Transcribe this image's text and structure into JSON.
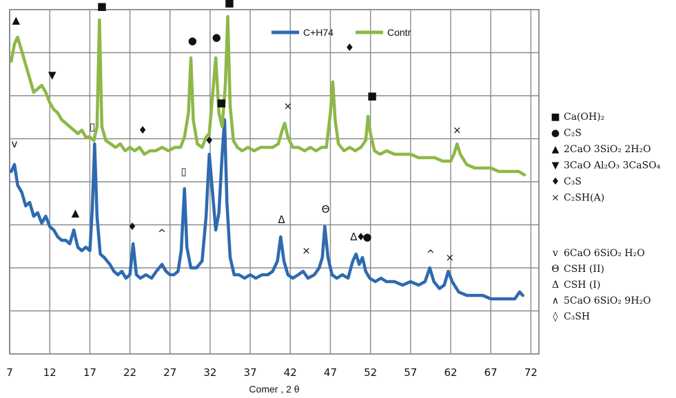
{
  "chart_data": {
    "type": "line",
    "title": "",
    "xlabel": "Сomer , 2 θ",
    "ylabel": "",
    "xlim": [
      7,
      73
    ],
    "x_ticks": [
      7,
      12,
      17,
      22,
      27,
      32,
      37,
      42,
      47,
      52,
      57,
      62,
      67,
      72
    ],
    "grid": true,
    "legend_position": "top-center",
    "series": [
      {
        "name": "C+H74",
        "color": "#2e6ab0",
        "points": [
          [
            7.2,
            0.53
          ],
          [
            7.6,
            0.55
          ],
          [
            8.0,
            0.49
          ],
          [
            8.5,
            0.47
          ],
          [
            9.0,
            0.43
          ],
          [
            9.5,
            0.44
          ],
          [
            10.0,
            0.4
          ],
          [
            10.5,
            0.41
          ],
          [
            11.0,
            0.38
          ],
          [
            11.5,
            0.4
          ],
          [
            12.0,
            0.37
          ],
          [
            12.5,
            0.36
          ],
          [
            13.0,
            0.34
          ],
          [
            13.5,
            0.33
          ],
          [
            14.0,
            0.33
          ],
          [
            14.5,
            0.32
          ],
          [
            15.0,
            0.36
          ],
          [
            15.5,
            0.31
          ],
          [
            16.0,
            0.3
          ],
          [
            16.5,
            0.31
          ],
          [
            17.0,
            0.3
          ],
          [
            17.3,
            0.42
          ],
          [
            17.6,
            0.61
          ],
          [
            17.9,
            0.4
          ],
          [
            18.3,
            0.29
          ],
          [
            18.8,
            0.28
          ],
          [
            19.5,
            0.26
          ],
          [
            20.0,
            0.24
          ],
          [
            20.5,
            0.23
          ],
          [
            21.0,
            0.24
          ],
          [
            21.5,
            0.22
          ],
          [
            22.0,
            0.23
          ],
          [
            22.4,
            0.32
          ],
          [
            22.8,
            0.23
          ],
          [
            23.3,
            0.22
          ],
          [
            24.0,
            0.23
          ],
          [
            24.7,
            0.22
          ],
          [
            25.3,
            0.24
          ],
          [
            26.0,
            0.26
          ],
          [
            26.5,
            0.24
          ],
          [
            27.0,
            0.23
          ],
          [
            27.5,
            0.23
          ],
          [
            28.0,
            0.24
          ],
          [
            28.4,
            0.3
          ],
          [
            28.8,
            0.48
          ],
          [
            29.1,
            0.31
          ],
          [
            29.6,
            0.25
          ],
          [
            30.3,
            0.25
          ],
          [
            31.0,
            0.27
          ],
          [
            31.5,
            0.4
          ],
          [
            31.9,
            0.58
          ],
          [
            32.3,
            0.47
          ],
          [
            32.7,
            0.36
          ],
          [
            33.1,
            0.41
          ],
          [
            33.5,
            0.58
          ],
          [
            33.8,
            0.68
          ],
          [
            34.1,
            0.44
          ],
          [
            34.5,
            0.28
          ],
          [
            35.0,
            0.23
          ],
          [
            35.6,
            0.23
          ],
          [
            36.3,
            0.22
          ],
          [
            37.0,
            0.23
          ],
          [
            37.7,
            0.22
          ],
          [
            38.5,
            0.23
          ],
          [
            39.2,
            0.23
          ],
          [
            39.8,
            0.24
          ],
          [
            40.4,
            0.27
          ],
          [
            40.8,
            0.34
          ],
          [
            41.2,
            0.27
          ],
          [
            41.7,
            0.23
          ],
          [
            42.3,
            0.22
          ],
          [
            43.0,
            0.23
          ],
          [
            43.6,
            0.24
          ],
          [
            44.2,
            0.22
          ],
          [
            45.0,
            0.23
          ],
          [
            45.6,
            0.25
          ],
          [
            46.0,
            0.28
          ],
          [
            46.3,
            0.37
          ],
          [
            46.7,
            0.28
          ],
          [
            47.2,
            0.23
          ],
          [
            47.8,
            0.22
          ],
          [
            48.5,
            0.23
          ],
          [
            49.2,
            0.22
          ],
          [
            49.8,
            0.27
          ],
          [
            50.2,
            0.29
          ],
          [
            50.6,
            0.26
          ],
          [
            51.0,
            0.28
          ],
          [
            51.4,
            0.24
          ],
          [
            51.9,
            0.22
          ],
          [
            52.6,
            0.21
          ],
          [
            53.3,
            0.22
          ],
          [
            54.0,
            0.21
          ],
          [
            55.0,
            0.21
          ],
          [
            56.0,
            0.2
          ],
          [
            57.0,
            0.21
          ],
          [
            58.0,
            0.2
          ],
          [
            58.8,
            0.21
          ],
          [
            59.4,
            0.25
          ],
          [
            59.9,
            0.21
          ],
          [
            60.6,
            0.19
          ],
          [
            61.2,
            0.2
          ],
          [
            61.7,
            0.24
          ],
          [
            62.2,
            0.21
          ],
          [
            63.0,
            0.18
          ],
          [
            64.0,
            0.17
          ],
          [
            65.0,
            0.17
          ],
          [
            66.0,
            0.17
          ],
          [
            67.0,
            0.16
          ],
          [
            68.0,
            0.16
          ],
          [
            69.0,
            0.16
          ],
          [
            70.0,
            0.16
          ],
          [
            70.6,
            0.18
          ],
          [
            71.0,
            0.17
          ]
        ]
      },
      {
        "name": "Contr",
        "color": "#8db848",
        "points": [
          [
            7.2,
            0.85
          ],
          [
            7.6,
            0.9
          ],
          [
            8.0,
            0.92
          ],
          [
            8.5,
            0.88
          ],
          [
            9.0,
            0.84
          ],
          [
            9.5,
            0.8
          ],
          [
            10.0,
            0.76
          ],
          [
            10.5,
            0.77
          ],
          [
            11.0,
            0.78
          ],
          [
            11.5,
            0.76
          ],
          [
            12.0,
            0.73
          ],
          [
            12.5,
            0.71
          ],
          [
            13.0,
            0.7
          ],
          [
            13.5,
            0.68
          ],
          [
            14.0,
            0.67
          ],
          [
            14.5,
            0.66
          ],
          [
            15.0,
            0.65
          ],
          [
            15.5,
            0.64
          ],
          [
            16.0,
            0.65
          ],
          [
            16.5,
            0.63
          ],
          [
            17.0,
            0.63
          ],
          [
            17.5,
            0.62
          ],
          [
            17.9,
            0.66
          ],
          [
            18.2,
            0.97
          ],
          [
            18.5,
            0.66
          ],
          [
            19.0,
            0.62
          ],
          [
            19.6,
            0.61
          ],
          [
            20.2,
            0.6
          ],
          [
            20.8,
            0.61
          ],
          [
            21.4,
            0.59
          ],
          [
            22.0,
            0.6
          ],
          [
            22.6,
            0.59
          ],
          [
            23.2,
            0.6
          ],
          [
            23.8,
            0.58
          ],
          [
            24.5,
            0.59
          ],
          [
            25.2,
            0.59
          ],
          [
            26.0,
            0.6
          ],
          [
            26.8,
            0.59
          ],
          [
            27.6,
            0.6
          ],
          [
            28.3,
            0.6
          ],
          [
            28.8,
            0.63
          ],
          [
            29.3,
            0.7
          ],
          [
            29.6,
            0.86
          ],
          [
            29.9,
            0.68
          ],
          [
            30.4,
            0.61
          ],
          [
            31.0,
            0.6
          ],
          [
            31.5,
            0.63
          ],
          [
            31.9,
            0.64
          ],
          [
            32.3,
            0.75
          ],
          [
            32.7,
            0.86
          ],
          [
            33.1,
            0.7
          ],
          [
            33.5,
            0.66
          ],
          [
            33.9,
            0.78
          ],
          [
            34.2,
            0.98
          ],
          [
            34.5,
            0.72
          ],
          [
            34.9,
            0.62
          ],
          [
            35.4,
            0.6
          ],
          [
            36.0,
            0.59
          ],
          [
            36.7,
            0.6
          ],
          [
            37.5,
            0.59
          ],
          [
            38.3,
            0.6
          ],
          [
            39.0,
            0.6
          ],
          [
            39.8,
            0.6
          ],
          [
            40.5,
            0.61
          ],
          [
            41.0,
            0.65
          ],
          [
            41.3,
            0.67
          ],
          [
            41.7,
            0.63
          ],
          [
            42.3,
            0.6
          ],
          [
            43.0,
            0.6
          ],
          [
            43.8,
            0.59
          ],
          [
            44.5,
            0.6
          ],
          [
            45.2,
            0.59
          ],
          [
            45.9,
            0.6
          ],
          [
            46.5,
            0.6
          ],
          [
            47.0,
            0.7
          ],
          [
            47.3,
            0.79
          ],
          [
            47.6,
            0.68
          ],
          [
            48.0,
            0.61
          ],
          [
            48.7,
            0.59
          ],
          [
            49.4,
            0.6
          ],
          [
            50.1,
            0.59
          ],
          [
            50.8,
            0.6
          ],
          [
            51.4,
            0.62
          ],
          [
            51.7,
            0.69
          ],
          [
            52.0,
            0.64
          ],
          [
            52.5,
            0.59
          ],
          [
            53.2,
            0.58
          ],
          [
            54.0,
            0.59
          ],
          [
            55.0,
            0.58
          ],
          [
            56.0,
            0.58
          ],
          [
            57.0,
            0.58
          ],
          [
            58.0,
            0.57
          ],
          [
            59.0,
            0.57
          ],
          [
            60.0,
            0.57
          ],
          [
            61.0,
            0.56
          ],
          [
            62.0,
            0.56
          ],
          [
            62.4,
            0.58
          ],
          [
            62.8,
            0.61
          ],
          [
            63.2,
            0.58
          ],
          [
            64.0,
            0.55
          ],
          [
            65.0,
            0.54
          ],
          [
            66.0,
            0.54
          ],
          [
            67.0,
            0.54
          ],
          [
            68.0,
            0.53
          ],
          [
            69.0,
            0.53
          ],
          [
            70.0,
            0.53
          ],
          [
            70.5,
            0.53
          ],
          [
            71.2,
            0.52
          ]
        ]
      }
    ],
    "peak_markers": [
      {
        "x": 7.8,
        "y": 0.96,
        "symbol": "▲"
      },
      {
        "x": 12.3,
        "y": 0.8,
        "symbol": "▼"
      },
      {
        "x": 18.5,
        "y": 1.0,
        "symbol": "■"
      },
      {
        "x": 23.6,
        "y": 0.64,
        "symbol": "♦"
      },
      {
        "x": 29.8,
        "y": 0.9,
        "symbol": "●"
      },
      {
        "x": 32.8,
        "y": 0.91,
        "symbol": "●"
      },
      {
        "x": 34.4,
        "y": 1.01,
        "symbol": "■"
      },
      {
        "x": 41.7,
        "y": 0.71,
        "symbol": "×"
      },
      {
        "x": 49.4,
        "y": 0.88,
        "symbol": "♦"
      },
      {
        "x": 52.2,
        "y": 0.74,
        "symbol": "■"
      },
      {
        "x": 62.8,
        "y": 0.64,
        "symbol": "×"
      },
      {
        "x": 7.6,
        "y": 0.6,
        "symbol": "v"
      },
      {
        "x": 17.3,
        "y": 0.65,
        "symbol": "▯"
      },
      {
        "x": 15.2,
        "y": 0.4,
        "symbol": "▲"
      },
      {
        "x": 22.3,
        "y": 0.36,
        "symbol": "♦"
      },
      {
        "x": 26.0,
        "y": 0.34,
        "symbol": "^"
      },
      {
        "x": 28.7,
        "y": 0.52,
        "symbol": "▯"
      },
      {
        "x": 31.9,
        "y": 0.61,
        "symbol": "♦"
      },
      {
        "x": 33.4,
        "y": 0.72,
        "symbol": "■"
      },
      {
        "x": 40.9,
        "y": 0.38,
        "symbol": "Δ"
      },
      {
        "x": 44.0,
        "y": 0.29,
        "symbol": "×"
      },
      {
        "x": 46.4,
        "y": 0.41,
        "symbol": "Θ"
      },
      {
        "x": 49.9,
        "y": 0.33,
        "symbol": "Δ"
      },
      {
        "x": 50.8,
        "y": 0.33,
        "symbol": "♦"
      },
      {
        "x": 51.6,
        "y": 0.33,
        "symbol": "●"
      },
      {
        "x": 59.5,
        "y": 0.28,
        "symbol": "^"
      },
      {
        "x": 61.9,
        "y": 0.27,
        "symbol": "×"
      }
    ],
    "phase_key_upper": [
      {
        "symbol": "■",
        "label": "Ca(OH)₂"
      },
      {
        "symbol": "●",
        "label": "C₂S"
      },
      {
        "symbol": "▲",
        "label": "2CaO 3SiO₂ 2H₂O"
      },
      {
        "symbol": "▼",
        "label": "3CaO Al₂O₃ 3CaSO₄"
      },
      {
        "symbol": "♦",
        "label": "C₃S"
      },
      {
        "symbol": "×",
        "label": "C₂SH(A)"
      }
    ],
    "phase_key_lower": [
      {
        "symbol": "v",
        "label": "6CaO 6SiO₂ H₂O"
      },
      {
        "symbol": "Θ",
        "label": "CSH (II)"
      },
      {
        "symbol": "Δ",
        "label": "CSH (I)"
      },
      {
        "symbol": "∧",
        "label": "5CaO 6SiO₂ 9H₂O"
      },
      {
        "symbol": "◊",
        "label": "C₃SH"
      }
    ]
  }
}
